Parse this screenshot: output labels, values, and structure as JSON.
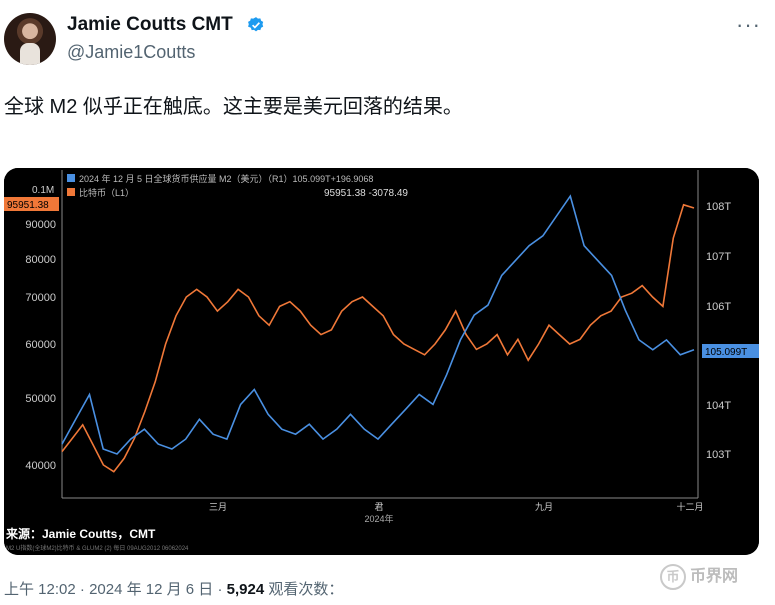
{
  "author": {
    "name": "Jamie Coutts CMT",
    "handle": "@Jamie1Coutts"
  },
  "icons": {
    "verified": "verified-badge-icon",
    "more": "more-icon",
    "watermark": "coin-logo-icon"
  },
  "tweet": {
    "text": "全球 M2 似乎正在触底。这主要是美元回落的结果。"
  },
  "meta": {
    "time": "上午 12:02",
    "dot": "·",
    "date": "2024 年 12 月 6 日",
    "views_label": "观看次数：",
    "views": "5,924"
  },
  "watermark": {
    "text": "币界网",
    "coin_glyph": "币"
  },
  "colors": {
    "m2": "#4a90e2",
    "btc": "#f07838",
    "accent": "#1d9bf0"
  },
  "chart_data": {
    "type": "line",
    "legend": [
      {
        "text": "2024 年 12 月 5 日全球货币供应量 M2（美元）（R1）105.099T+196.9068"
      },
      {
        "text": "比特币（L1）",
        "value": "95951.38  -3078.49"
      }
    ],
    "left_axis": {
      "ticks": [
        "90000",
        "80000",
        "70000",
        "60000",
        "50000",
        "40000"
      ],
      "top_tick": "0.1M",
      "badge": "95951.38"
    },
    "right_axis": {
      "ticks": [
        "108T",
        "107T",
        "106T",
        "104T",
        "103T"
      ],
      "badge": "105.099T"
    },
    "x_axis": {
      "ticks": [
        "三月",
        "君",
        "九月",
        "十二月"
      ],
      "year": "2024年"
    },
    "source": "来源：Jamie Coutts，CMT",
    "footnote": "M2 U指数(全球M2)比特币 & GLUM2 (2) 每日 09AUG2012 06062024",
    "btc_series": [
      42,
      44,
      46,
      43,
      40,
      39,
      41,
      44,
      48,
      53,
      60,
      66,
      70,
      72,
      70,
      67,
      69,
      72,
      70,
      66,
      64,
      68,
      69,
      67,
      64,
      62,
      63,
      67,
      69,
      70,
      68,
      66,
      62,
      60,
      59,
      58,
      60,
      63,
      67,
      62,
      59,
      60,
      62,
      58,
      61,
      57,
      60,
      64,
      62,
      60,
      61,
      64,
      66,
      67,
      70,
      71,
      73,
      70,
      68,
      86,
      96,
      95
    ],
    "m2_series": [
      103.2,
      103.7,
      104.2,
      103.1,
      103.0,
      103.3,
      103.5,
      103.2,
      103.1,
      103.3,
      103.7,
      103.4,
      103.3,
      104.0,
      104.3,
      103.8,
      103.5,
      103.4,
      103.6,
      103.3,
      103.5,
      103.8,
      103.5,
      103.3,
      103.6,
      103.9,
      104.2,
      104.0,
      104.6,
      105.3,
      105.8,
      106.0,
      106.6,
      106.9,
      107.2,
      107.4,
      107.8,
      108.2,
      107.2,
      106.9,
      106.6,
      105.9,
      105.3,
      105.1,
      105.3,
      105.0,
      105.1
    ]
  }
}
